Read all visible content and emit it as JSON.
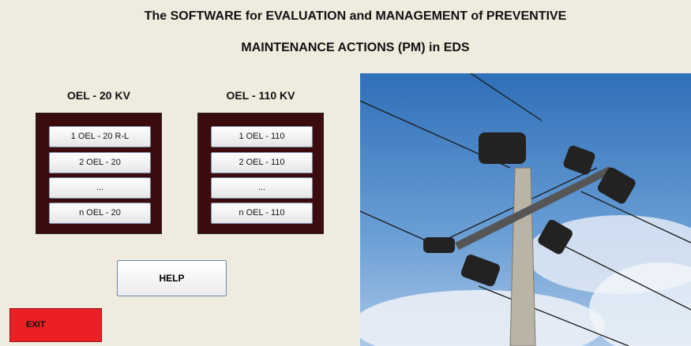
{
  "header": {
    "title_lines": [
      "The SOFTWARE for EVALUATION and MANAGEMENT of PREVENTIVE",
      "MAINTENANCE ACTIONS (PM) in EDS"
    ]
  },
  "groups": [
    {
      "label": "OEL - 20 KV",
      "buttons": [
        "1 OEL - 20 R-L",
        "2 OEL - 20",
        "...",
        "n OEL - 20"
      ]
    },
    {
      "label": "OEL - 110 KV",
      "buttons": [
        "1 OEL - 110",
        "2 OEL - 110",
        "...",
        "n OEL - 110"
      ]
    }
  ],
  "help_button": "HELP",
  "exit_button": "EXIT"
}
